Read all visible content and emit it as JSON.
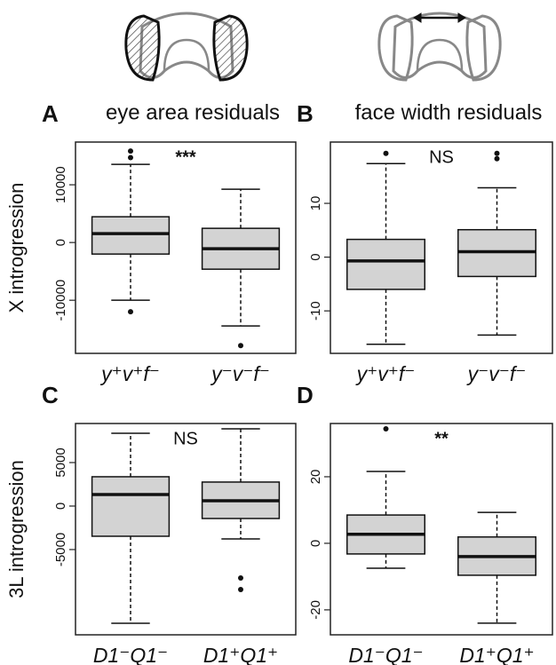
{
  "chart_data": [
    {
      "type": "box",
      "label": "A",
      "title": "eye area residuals",
      "ylabel": "X introgression",
      "annotation": "***",
      "color": "#d3d3d3",
      "categories": [
        "y⁺v⁺f⁻",
        "y⁻v⁻f⁻"
      ],
      "boxes": [
        {
          "whislo": -10000,
          "q1": -2000,
          "med": 1540,
          "q3": 4460,
          "whishi": 13540,
          "fliers": [
            15850,
            14700,
            -12000
          ]
        },
        {
          "whislo": -14460,
          "q1": -4620,
          "med": -1080,
          "q3": 2460,
          "whishi": 9230,
          "fliers": [
            -17850
          ]
        }
      ],
      "ylim": [
        -19200,
        17400
      ],
      "yticks": [
        -10000,
        0,
        10000
      ]
    },
    {
      "type": "box",
      "label": "B",
      "title": "face width residuals",
      "annotation": "NS",
      "color": "#d3d3d3",
      "categories": [
        "y⁺v⁺f⁻",
        "y⁻v⁻f⁻"
      ],
      "boxes": [
        {
          "whislo": -16.2,
          "q1": -6.0,
          "med": -0.7,
          "q3": 3.3,
          "whishi": 17.4,
          "fliers": [
            19.3
          ]
        },
        {
          "whislo": -14.5,
          "q1": -3.6,
          "med": 1.0,
          "q3": 5.1,
          "whishi": 12.9,
          "fliers": [
            19.3,
            18.3
          ]
        }
      ],
      "ylim": [
        -17.9,
        21.4
      ],
      "yticks": [
        -10,
        0,
        10
      ]
    },
    {
      "type": "box",
      "label": "C",
      "ylabel": "3L introgression",
      "annotation": "NS",
      "color": "#d3d3d3",
      "categories": [
        "D1⁻Q1⁻",
        "D1⁺Q1⁺"
      ],
      "boxes": [
        {
          "whislo": -13470,
          "q1": -3470,
          "med": 1330,
          "q3": 3370,
          "whishi": 8370,
          "fliers": []
        },
        {
          "whislo": -3780,
          "q1": -1430,
          "med": 610,
          "q3": 2760,
          "whishi": 8880,
          "fliers": [
            -8270,
            -9590
          ]
        }
      ],
      "ylim": [
        -14800,
        9490
      ],
      "yticks": [
        -5000,
        0,
        5000
      ]
    },
    {
      "type": "box",
      "label": "D",
      "annotation": "**",
      "color": "#d3d3d3",
      "categories": [
        "D1⁻Q1⁻",
        "D1⁺Q1⁺"
      ],
      "boxes": [
        {
          "whislo": -7.5,
          "q1": -3.2,
          "med": 2.7,
          "q3": 8.5,
          "whishi": 21.6,
          "fliers": [
            34.4
          ]
        },
        {
          "whislo": -24,
          "q1": -9.6,
          "med": -4.0,
          "q3": 1.9,
          "whishi": 9.3,
          "fliers": []
        }
      ],
      "ylim": [
        -27.5,
        36
      ],
      "yticks": [
        -20,
        0,
        20
      ]
    }
  ]
}
